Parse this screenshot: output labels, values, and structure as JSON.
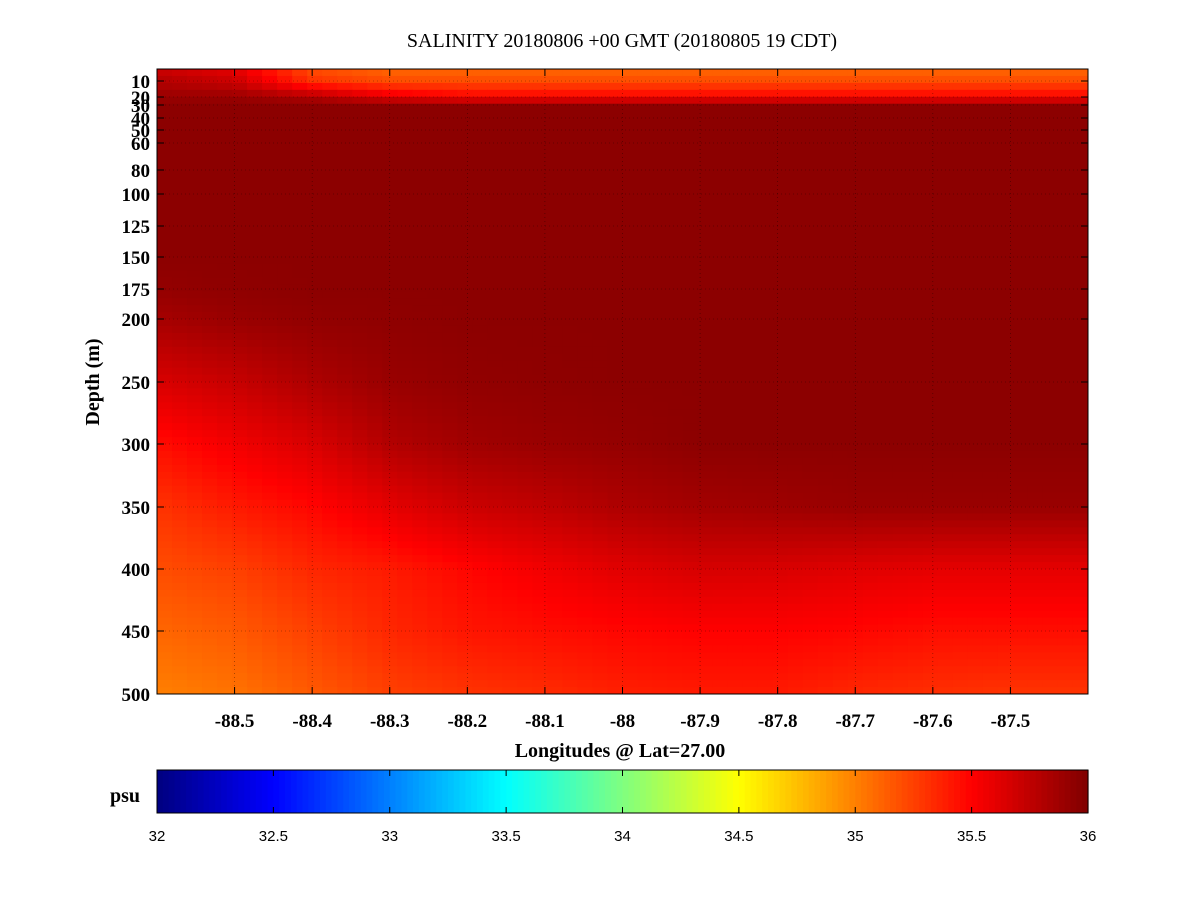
{
  "chart_data": {
    "type": "heatmap",
    "title": "SALINITY 20180806 +00 GMT (20180805 19 CDT)",
    "xlabel": "Longitudes @ Lat=27.00",
    "ylabel": "Depth (m)",
    "colorbar_label": "psu",
    "xlim": [
      -88.6,
      -87.4
    ],
    "ylim": [
      500,
      0
    ],
    "x_ticks": [
      -88.5,
      -88.4,
      -88.3,
      -88.2,
      -88.1,
      -88,
      -87.9,
      -87.8,
      -87.7,
      -87.6,
      -87.5
    ],
    "x_tick_labels": [
      "-88.5",
      "-88.4",
      "-88.3",
      "-88.2",
      "-88.1",
      "-88",
      "-87.9",
      "-87.8",
      "-87.7",
      "-87.6",
      "-87.5"
    ],
    "y_ticks": [
      10,
      20,
      30,
      40,
      50,
      60,
      80,
      100,
      125,
      150,
      175,
      200,
      250,
      300,
      350,
      400,
      450,
      500
    ],
    "y_tick_labels": [
      "10",
      "20",
      "30",
      "40",
      "50",
      "60",
      "80",
      "100",
      "125",
      "150",
      "175",
      "200",
      "250",
      "300",
      "350",
      "400",
      "450",
      "500"
    ],
    "colorbar_range": [
      32,
      36
    ],
    "colorbar_ticks": [
      32,
      32.5,
      33,
      33.5,
      34,
      34.5,
      35,
      35.5,
      36
    ],
    "colorbar_tick_labels": [
      "32",
      "32.5",
      "33",
      "33.5",
      "34",
      "34.5",
      "35",
      "35.5",
      "36"
    ],
    "colormap": "jet",
    "grid": true,
    "x": [
      -88.6,
      -88.5,
      -88.4,
      -88.3,
      -88.2,
      -88.1,
      -88.0,
      -87.9,
      -87.8,
      -87.7,
      -87.6,
      -87.5,
      -87.4
    ],
    "y": [
      0,
      10,
      20,
      30,
      40,
      50,
      60,
      80,
      100,
      125,
      150,
      175,
      200,
      250,
      300,
      350,
      400,
      450,
      500
    ],
    "z": [
      [
        35.7,
        35.6,
        35.2,
        35.1,
        35.1,
        35.1,
        35.1,
        35.1,
        35.1,
        35.1,
        35.1,
        35.1,
        35.1
      ],
      [
        35.8,
        35.7,
        35.3,
        35.2,
        35.2,
        35.2,
        35.2,
        35.2,
        35.2,
        35.2,
        35.2,
        35.2,
        35.2
      ],
      [
        35.9,
        35.9,
        35.8,
        35.6,
        35.5,
        35.5,
        35.5,
        35.5,
        35.5,
        35.5,
        35.5,
        35.5,
        35.5
      ],
      [
        35.95,
        35.95,
        35.95,
        35.95,
        35.95,
        35.95,
        35.95,
        35.95,
        35.95,
        35.95,
        35.95,
        35.95,
        35.95
      ],
      [
        35.95,
        35.95,
        35.95,
        35.95,
        35.95,
        35.95,
        35.95,
        35.95,
        35.95,
        35.95,
        35.95,
        35.95,
        35.95
      ],
      [
        35.95,
        35.95,
        35.95,
        35.95,
        35.95,
        35.95,
        35.95,
        35.95,
        35.95,
        35.95,
        35.95,
        35.95,
        35.95
      ],
      [
        35.95,
        35.95,
        35.95,
        35.95,
        35.95,
        35.95,
        35.95,
        35.95,
        35.95,
        35.95,
        35.95,
        35.95,
        35.95
      ],
      [
        35.95,
        35.95,
        35.95,
        35.95,
        35.95,
        35.95,
        35.95,
        35.95,
        35.95,
        35.95,
        35.95,
        35.95,
        35.95
      ],
      [
        35.95,
        35.95,
        35.95,
        35.95,
        35.95,
        35.95,
        35.95,
        35.95,
        35.95,
        35.95,
        35.95,
        35.95,
        35.95
      ],
      [
        35.95,
        35.95,
        35.95,
        35.95,
        35.95,
        35.95,
        35.95,
        35.95,
        35.95,
        35.95,
        35.95,
        35.95,
        35.95
      ],
      [
        35.95,
        35.95,
        35.95,
        35.95,
        35.95,
        35.95,
        35.95,
        35.95,
        35.95,
        35.95,
        35.95,
        35.95,
        35.95
      ],
      [
        35.92,
        35.94,
        35.95,
        35.95,
        35.95,
        35.95,
        35.95,
        35.95,
        35.95,
        35.95,
        35.95,
        35.95,
        35.95
      ],
      [
        35.85,
        35.9,
        35.93,
        35.94,
        35.95,
        35.95,
        35.95,
        35.95,
        35.95,
        35.95,
        35.95,
        35.95,
        35.95
      ],
      [
        35.65,
        35.72,
        35.82,
        35.9,
        35.93,
        35.94,
        35.95,
        35.95,
        35.95,
        35.95,
        35.95,
        35.95,
        35.95
      ],
      [
        35.45,
        35.55,
        35.65,
        35.8,
        35.87,
        35.9,
        35.92,
        35.95,
        35.95,
        35.95,
        35.95,
        35.95,
        35.95
      ],
      [
        35.3,
        35.4,
        35.48,
        35.6,
        35.7,
        35.75,
        35.82,
        35.86,
        35.88,
        35.9,
        35.9,
        35.9,
        35.9
      ],
      [
        35.2,
        35.25,
        35.35,
        35.4,
        35.48,
        35.55,
        35.62,
        35.66,
        35.65,
        35.62,
        35.6,
        35.6,
        35.6
      ],
      [
        35.1,
        35.15,
        35.25,
        35.35,
        35.42,
        35.45,
        35.48,
        35.5,
        35.5,
        35.48,
        35.45,
        35.45,
        35.45
      ],
      [
        35.0,
        35.05,
        35.15,
        35.25,
        35.3,
        35.33,
        35.38,
        35.4,
        35.4,
        35.35,
        35.32,
        35.3,
        35.3
      ]
    ]
  }
}
